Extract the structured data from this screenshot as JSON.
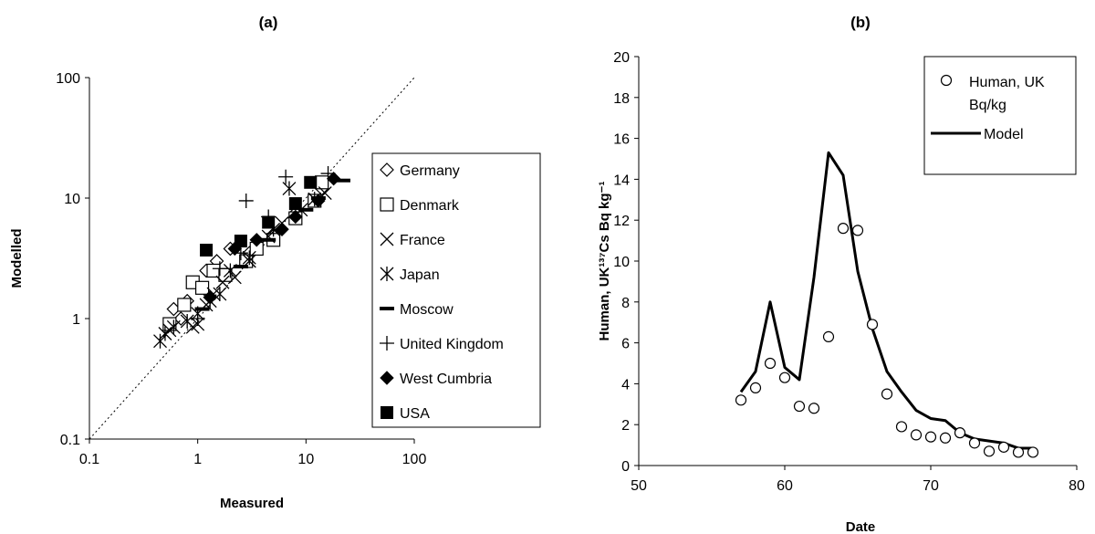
{
  "chart_data": [
    {
      "panel_label": "(a)",
      "type": "scatter",
      "xlabel": "Measured",
      "ylabel": "Modelled",
      "xscale": "log",
      "yscale": "log",
      "xlim": [
        0.1,
        100
      ],
      "ylim": [
        0.1,
        100
      ],
      "x_ticks": [
        "0.1",
        "1",
        "10",
        "100"
      ],
      "y_ticks": [
        "0.1",
        "1",
        "10",
        "100"
      ],
      "reference_line": "1:1 dotted",
      "grid": false,
      "legend_position": "right",
      "series": [
        {
          "name": "Germany",
          "marker": "diamond-open",
          "points": [
            [
              0.6,
              1.2
            ],
            [
              0.7,
              1.0
            ],
            [
              0.8,
              1.4
            ],
            [
              1.2,
              2.5
            ],
            [
              1.5,
              3.0
            ],
            [
              2.0,
              3.8
            ],
            [
              3.0,
              3.5
            ],
            [
              5.0,
              5.0
            ],
            [
              8.0,
              7.5
            ],
            [
              14.0,
              12.0
            ]
          ]
        },
        {
          "name": "Denmark",
          "marker": "square-open",
          "points": [
            [
              0.55,
              0.9
            ],
            [
              0.75,
              1.3
            ],
            [
              0.9,
              2.0
            ],
            [
              1.1,
              1.8
            ],
            [
              1.4,
              2.5
            ],
            [
              1.8,
              2.3
            ],
            [
              2.8,
              3.0
            ],
            [
              3.5,
              3.8
            ],
            [
              5.0,
              4.5
            ],
            [
              8.0,
              6.8
            ],
            [
              12.0,
              9.5
            ],
            [
              14.0,
              13.5
            ]
          ]
        },
        {
          "name": "France",
          "marker": "x",
          "points": [
            [
              0.55,
              0.8
            ],
            [
              0.9,
              0.85
            ],
            [
              1.0,
              0.9
            ],
            [
              1.2,
              1.3
            ],
            [
              1.4,
              1.6
            ],
            [
              1.7,
              2.0
            ],
            [
              2.2,
              2.2
            ],
            [
              3.0,
              3.0
            ],
            [
              4.5,
              4.8
            ],
            [
              6.0,
              6.2
            ],
            [
              9.0,
              8.0
            ],
            [
              15.0,
              11.0
            ]
          ]
        },
        {
          "name": "Japan",
          "marker": "asterisk",
          "points": [
            [
              0.45,
              0.65
            ],
            [
              0.5,
              0.75
            ],
            [
              0.6,
              0.85
            ],
            [
              0.8,
              0.95
            ],
            [
              1.0,
              1.1
            ],
            [
              1.3,
              1.4
            ],
            [
              1.6,
              1.6
            ],
            [
              2.0,
              2.5
            ],
            [
              3.0,
              3.2
            ],
            [
              5.0,
              5.5
            ],
            [
              7.0,
              12.0
            ],
            [
              12.0,
              9.8
            ]
          ]
        },
        {
          "name": "Moscow",
          "marker": "dash",
          "points": [
            [
              1.1,
              1.2
            ],
            [
              2.5,
              2.7
            ],
            [
              4.5,
              4.5
            ],
            [
              10.0,
              8.0
            ],
            [
              13.0,
              10.0
            ],
            [
              22.0,
              14.0
            ]
          ]
        },
        {
          "name": "United Kingdom",
          "marker": "plus",
          "points": [
            [
              1.0,
              1.0
            ],
            [
              1.6,
              2.6
            ],
            [
              2.5,
              3.5
            ],
            [
              2.8,
              9.5
            ],
            [
              4.5,
              7.0
            ],
            [
              6.5,
              15.0
            ],
            [
              16.0,
              16.0
            ]
          ]
        },
        {
          "name": "West Cumbria",
          "marker": "diamond-filled",
          "points": [
            [
              1.3,
              1.5
            ],
            [
              2.2,
              3.8
            ],
            [
              3.5,
              4.5
            ],
            [
              6.0,
              5.5
            ],
            [
              8.0,
              7.0
            ],
            [
              13.0,
              9.5
            ],
            [
              18.0,
              14.5
            ]
          ]
        },
        {
          "name": "USA",
          "marker": "square-filled",
          "points": [
            [
              1.2,
              3.7
            ],
            [
              2.5,
              4.4
            ],
            [
              4.5,
              6.3
            ],
            [
              8.0,
              9.0
            ],
            [
              11.0,
              13.5
            ]
          ]
        }
      ]
    },
    {
      "panel_label": "(b)",
      "type": "line",
      "xlabel": "Date",
      "ylabel": "Human, UK¹³⁷Cs Bq kg⁻¹",
      "xlim": [
        50,
        80
      ],
      "ylim": [
        0,
        20
      ],
      "x_ticks": [
        "50",
        "60",
        "70",
        "80"
      ],
      "y_ticks": [
        "0",
        "2",
        "4",
        "6",
        "8",
        "10",
        "12",
        "14",
        "16",
        "18",
        "20"
      ],
      "grid": false,
      "legend_position": "top-right",
      "series": [
        {
          "name": "Human, UK Bq/kg",
          "style": "open-circles",
          "x": [
            57,
            58,
            59,
            60,
            61,
            62,
            63,
            64,
            65,
            66,
            67,
            68,
            69,
            70,
            71,
            72,
            73,
            74,
            75,
            76,
            77
          ],
          "y": [
            3.2,
            3.8,
            5.0,
            4.3,
            2.9,
            2.8,
            6.3,
            11.6,
            11.5,
            6.9,
            3.5,
            1.9,
            1.5,
            1.4,
            1.35,
            1.6,
            1.1,
            0.7,
            0.9,
            0.65,
            0.65
          ]
        },
        {
          "name": "Model",
          "style": "line",
          "x": [
            57,
            58,
            59,
            60,
            61,
            62,
            63,
            64,
            65,
            66,
            67,
            68,
            69,
            70,
            71,
            72,
            73,
            74,
            75,
            76,
            77
          ],
          "y": [
            3.6,
            4.6,
            8.0,
            4.8,
            4.2,
            9.2,
            15.3,
            14.2,
            9.5,
            6.7,
            4.6,
            3.6,
            2.7,
            2.3,
            2.2,
            1.6,
            1.3,
            1.2,
            1.1,
            0.85,
            0.85
          ]
        }
      ]
    }
  ]
}
